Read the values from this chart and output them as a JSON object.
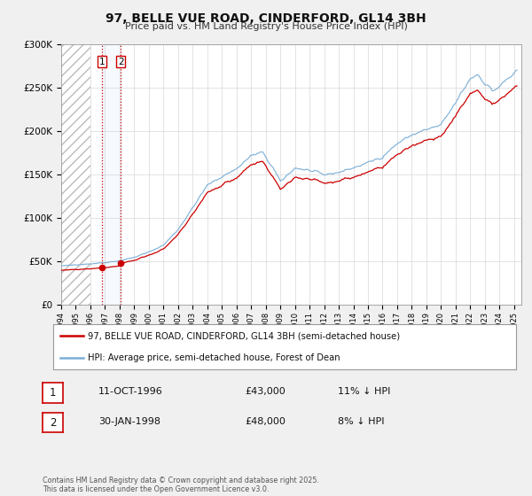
{
  "title": "97, BELLE VUE ROAD, CINDERFORD, GL14 3BH",
  "subtitle": "Price paid vs. HM Land Registry's House Price Index (HPI)",
  "legend_line1": "97, BELLE VUE ROAD, CINDERFORD, GL14 3BH (semi-detached house)",
  "legend_line2": "HPI: Average price, semi-detached house, Forest of Dean",
  "transaction1_date": "11-OCT-1996",
  "transaction1_price": "£43,000",
  "transaction1_hpi": "11% ↓ HPI",
  "transaction1_year": 1996.78,
  "transaction1_value": 43000,
  "transaction2_date": "30-JAN-1998",
  "transaction2_price": "£48,000",
  "transaction2_hpi": "8% ↓ HPI",
  "transaction2_year": 1998.08,
  "transaction2_value": 48000,
  "price_color": "#cc0000",
  "hpi_color": "#7aaed6",
  "background_color": "#f0f0f0",
  "plot_bg_color": "#ffffff",
  "ytick_labels": [
    "£0",
    "£50K",
    "£100K",
    "£150K",
    "£200K",
    "£250K",
    "£300K"
  ],
  "yticks": [
    0,
    50000,
    100000,
    150000,
    200000,
    250000,
    300000
  ],
  "xstart": 1994.0,
  "xend": 2025.5,
  "footer": "Contains HM Land Registry data © Crown copyright and database right 2025.\nThis data is licensed under the Open Government Licence v3.0."
}
